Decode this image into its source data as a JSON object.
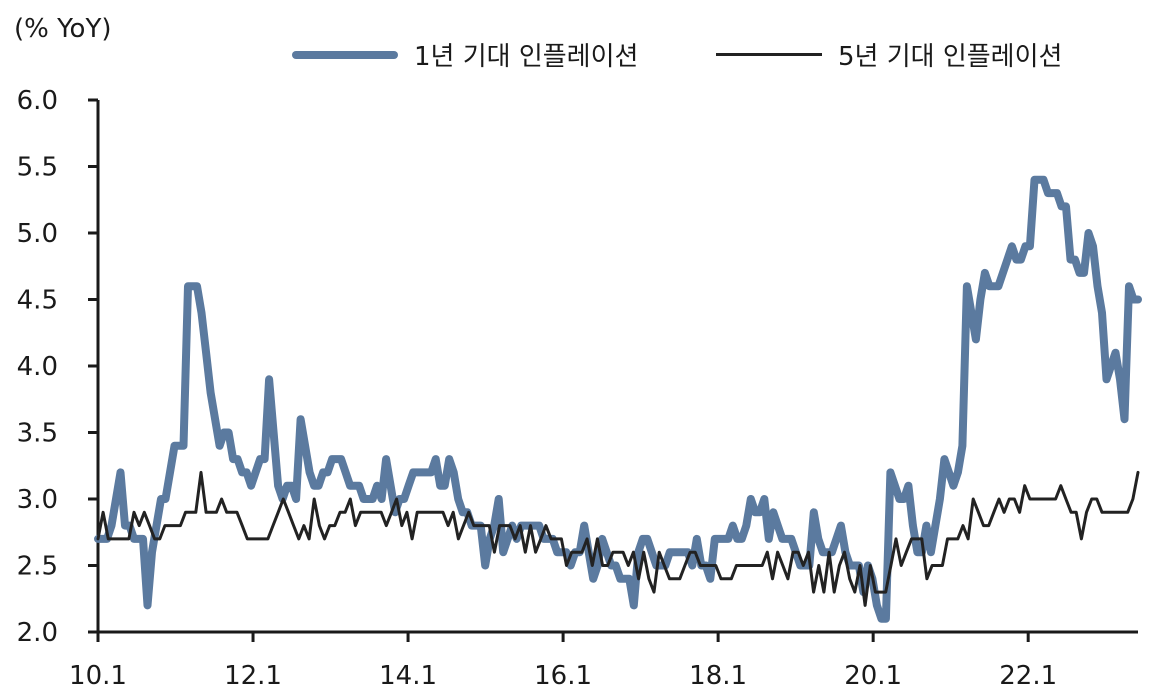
{
  "chart_data": {
    "type": "line",
    "title": "",
    "unit_label": "(% YoY)",
    "xlabel": "",
    "ylabel": "",
    "ylim": [
      2.0,
      6.0
    ],
    "y_ticks": [
      "2.0",
      "2.5",
      "3.0",
      "3.5",
      "4.0",
      "4.5",
      "5.0",
      "5.5",
      "6.0"
    ],
    "x_ticks": [
      "10.1",
      "12.1",
      "14.1",
      "16.1",
      "18.1",
      "20.1",
      "22.1"
    ],
    "x_start": "2010-01",
    "x_end": "2023-06",
    "grid": false,
    "legend_position": "top",
    "series": [
      {
        "name": "1년 기대 인플레이션",
        "color": "#5b7a9f",
        "values": [
          2.7,
          2.7,
          2.7,
          2.8,
          3.0,
          3.2,
          2.8,
          2.8,
          2.7,
          2.7,
          2.7,
          2.2,
          2.6,
          2.8,
          3.0,
          3.0,
          3.2,
          3.4,
          3.4,
          3.4,
          4.6,
          4.6,
          4.6,
          4.4,
          4.1,
          3.8,
          3.6,
          3.4,
          3.5,
          3.5,
          3.3,
          3.3,
          3.2,
          3.2,
          3.1,
          3.2,
          3.3,
          3.3,
          3.9,
          3.5,
          3.1,
          3.0,
          3.1,
          3.1,
          3.0,
          3.6,
          3.4,
          3.2,
          3.1,
          3.1,
          3.2,
          3.2,
          3.3,
          3.3,
          3.3,
          3.2,
          3.1,
          3.1,
          3.1,
          3.0,
          3.0,
          3.0,
          3.1,
          3.0,
          3.3,
          3.1,
          2.9,
          3.0,
          3.0,
          3.1,
          3.2,
          3.2,
          3.2,
          3.2,
          3.2,
          3.3,
          3.1,
          3.1,
          3.3,
          3.2,
          3.0,
          2.9,
          2.9,
          2.8,
          2.8,
          2.8,
          2.5,
          2.7,
          2.8,
          3.0,
          2.6,
          2.7,
          2.8,
          2.7,
          2.8,
          2.8,
          2.8,
          2.8,
          2.8,
          2.7,
          2.7,
          2.7,
          2.6,
          2.6,
          2.6,
          2.5,
          2.6,
          2.6,
          2.8,
          2.6,
          2.4,
          2.5,
          2.7,
          2.6,
          2.5,
          2.5,
          2.4,
          2.4,
          2.4,
          2.2,
          2.6,
          2.7,
          2.7,
          2.6,
          2.5,
          2.5,
          2.5,
          2.6,
          2.6,
          2.6,
          2.6,
          2.6,
          2.5,
          2.7,
          2.5,
          2.5,
          2.4,
          2.7,
          2.7,
          2.7,
          2.7,
          2.8,
          2.7,
          2.7,
          2.8,
          3.0,
          2.9,
          2.9,
          3.0,
          2.7,
          2.9,
          2.8,
          2.7,
          2.7,
          2.7,
          2.6,
          2.5,
          2.5,
          2.5,
          2.9,
          2.7,
          2.6,
          2.6,
          2.6,
          2.7,
          2.8,
          2.6,
          2.5,
          2.5,
          2.5,
          2.3,
          2.5,
          2.4,
          2.2,
          2.1,
          2.1,
          3.2,
          3.1,
          3.0,
          3.0,
          3.1,
          2.8,
          2.6,
          2.6,
          2.8,
          2.6,
          2.8,
          3.0,
          3.3,
          3.2,
          3.1,
          3.2,
          3.4,
          4.6,
          4.4,
          4.2,
          4.5,
          4.7,
          4.6,
          4.6,
          4.6,
          4.7,
          4.8,
          4.9,
          4.8,
          4.8,
          4.9,
          4.9,
          5.4,
          5.4,
          5.4,
          5.3,
          5.3,
          5.3,
          5.2,
          5.2,
          4.8,
          4.8,
          4.7,
          4.7,
          5.0,
          4.9,
          4.6,
          4.4,
          3.9,
          4.0,
          4.1,
          3.9,
          3.6,
          4.6,
          4.5,
          4.5
        ]
      },
      {
        "name": "5년 기대 인플레이션",
        "color": "#222222",
        "values": [
          2.7,
          2.9,
          2.7,
          2.7,
          2.7,
          2.7,
          2.7,
          2.9,
          2.8,
          2.9,
          2.8,
          2.7,
          2.7,
          2.8,
          2.8,
          2.8,
          2.8,
          2.9,
          2.9,
          2.9,
          3.2,
          2.9,
          2.9,
          2.9,
          3.0,
          2.9,
          2.9,
          2.9,
          2.8,
          2.7,
          2.7,
          2.7,
          2.7,
          2.7,
          2.8,
          2.9,
          3.0,
          2.9,
          2.8,
          2.7,
          2.8,
          2.7,
          3.0,
          2.8,
          2.7,
          2.8,
          2.8,
          2.9,
          2.9,
          3.0,
          2.8,
          2.9,
          2.9,
          2.9,
          2.9,
          2.9,
          2.8,
          2.9,
          3.0,
          2.8,
          2.9,
          2.7,
          2.9,
          2.9,
          2.9,
          2.9,
          2.9,
          2.9,
          2.8,
          2.9,
          2.7,
          2.8,
          2.9,
          2.8,
          2.8,
          2.8,
          2.8,
          2.6,
          2.8,
          2.8,
          2.8,
          2.7,
          2.8,
          2.6,
          2.8,
          2.6,
          2.7,
          2.8,
          2.7,
          2.7,
          2.7,
          2.5,
          2.6,
          2.6,
          2.6,
          2.7,
          2.5,
          2.7,
          2.5,
          2.5,
          2.6,
          2.6,
          2.6,
          2.5,
          2.6,
          2.4,
          2.6,
          2.4,
          2.3,
          2.6,
          2.5,
          2.4,
          2.4,
          2.4,
          2.5,
          2.6,
          2.6,
          2.5,
          2.5,
          2.5,
          2.5,
          2.4,
          2.4,
          2.4,
          2.5,
          2.5,
          2.5,
          2.5,
          2.5,
          2.5,
          2.6,
          2.4,
          2.6,
          2.5,
          2.4,
          2.6,
          2.6,
          2.5,
          2.6,
          2.3,
          2.5,
          2.3,
          2.6,
          2.3,
          2.5,
          2.6,
          2.4,
          2.3,
          2.5,
          2.2,
          2.5,
          2.3,
          2.3,
          2.3,
          2.5,
          2.7,
          2.5,
          2.6,
          2.7,
          2.7,
          2.7,
          2.4,
          2.5,
          2.5,
          2.5,
          2.7,
          2.7,
          2.7,
          2.8,
          2.7,
          3.0,
          2.9,
          2.8,
          2.8,
          2.9,
          3.0,
          2.9,
          3.0,
          3.0,
          2.9,
          3.1,
          3.0,
          3.0,
          3.0,
          3.0,
          3.0,
          3.0,
          3.1,
          3.0,
          2.9,
          2.9,
          2.7,
          2.9,
          3.0,
          3.0,
          2.9,
          2.9,
          2.9,
          2.9,
          2.9,
          2.9,
          3.0,
          3.2
        ]
      }
    ]
  }
}
